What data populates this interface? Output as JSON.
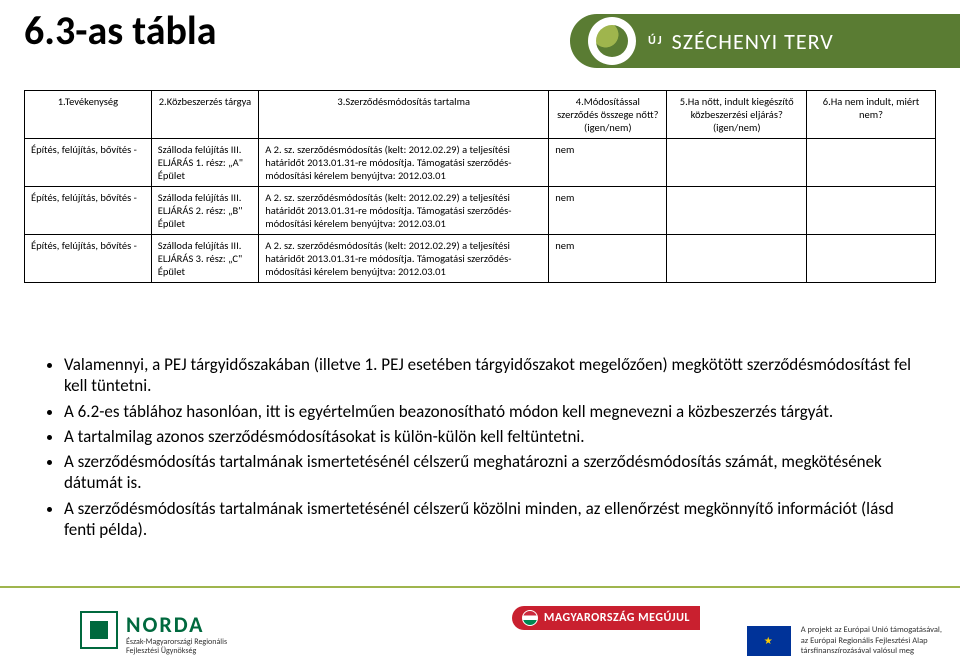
{
  "page_title": "6.3-as tábla",
  "banner": {
    "prefix": "ÚJ",
    "name": "SZÉCHENYI TERV"
  },
  "table": {
    "headers": [
      "1.Tevékenység",
      "2.Közbeszerzés tárgya",
      "3.Szerződésmódosítás tartalma",
      "4.Módosítással szerződés összege nőtt? (igen/nem)",
      "5.Ha nőtt, indult kiegészítő közbeszerzési eljárás? (igen/nem)",
      "6.Ha nem indult, miért nem?"
    ],
    "rows": [
      {
        "c1": "Építés, felújítás, bővítés -",
        "c2": "Szálloda felújítás III. ELJÁRÁS 1. rész: „A\" Épület",
        "c3": "A 2. sz. szerződésmódosítás (kelt: 2012.02.29) a teljesítési határidőt 2013.01.31-re módosítja. Támogatási szerződés-módosítási kérelem benyújtva: 2012.03.01",
        "c4": "nem",
        "c5": "",
        "c6": ""
      },
      {
        "c1": "Építés, felújítás, bővítés -",
        "c2": "Szálloda felújítás III. ELJÁRÁS 2. rész: „B\" Épület",
        "c3": "A 2. sz. szerződésmódosítás (kelt: 2012.02.29) a teljesítési határidőt 2013.01.31-re módosítja. Támogatási szerződés-módosítási kérelem benyújtva: 2012.03.01",
        "c4": "nem",
        "c5": "",
        "c6": ""
      },
      {
        "c1": "Építés, felújítás, bővítés -",
        "c2": "Szálloda felújítás III. ELJÁRÁS 3. rész: „C\" Épület",
        "c3": "A 2. sz. szerződésmódosítás (kelt: 2012.02.29) a teljesítési határidőt 2013.01.31-re módosítja. Támogatási szerződés-módosítási kérelem benyújtva: 2012.03.01",
        "c4": "nem",
        "c5": "",
        "c6": ""
      }
    ]
  },
  "notes": [
    "Valamennyi, a PEJ tárgyidőszakában (illetve 1. PEJ esetében tárgyidőszakot megelőzően) megkötött szerződésmódosítást fel kell tüntetni.",
    "A 6.2-es táblához hasonlóan, itt is egyértelműen beazonosítható módon kell megnevezni a közbeszerzés tárgyát.",
    "A tartalmilag azonos szerződésmódosításokat  is külön-külön kell feltüntetni.",
    "A szerződésmódosítás tartalmának ismertetésénél célszerű meghatározni a szerződésmódosítás számát, megkötésének dátumát is.",
    "A szerződésmódosítás tartalmának ismertetésénél célszerű közölni minden, az ellenőrzést megkönnyítő információt (lásd fenti példa)."
  ],
  "footer": {
    "norda_name": "NORDA",
    "norda_sub1": "Észak-Magyarországi Regionális",
    "norda_sub2": "Fejlesztési Ügynökség",
    "mm": "MAGYARORSZÁG MEGÚJUL",
    "eu1": "A projekt az Európai Unió támogatásával,",
    "eu2": "az Európai Regionális Fejlesztési Alap",
    "eu3": "társfinanszírozásával valósul meg"
  },
  "colors": {
    "banner_bg": "#5a7c33",
    "accent_line": "#9fb54d",
    "mm_bg": "#c9202f",
    "norda_green": "#00693e"
  }
}
